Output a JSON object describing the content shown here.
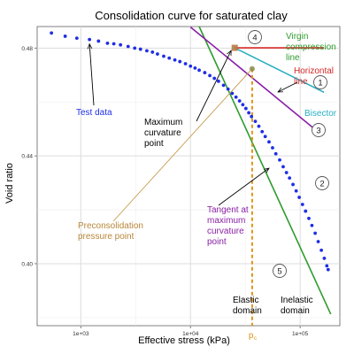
{
  "chart_data": {
    "type": "scatter",
    "title": "Consolidation curve for saturated clay",
    "xlabel": "Effective stress (kPa)",
    "ylabel": "Void ratio",
    "xscale": "log",
    "xlim": [
      400,
      230000
    ],
    "ylim": [
      0.377,
      0.488
    ],
    "xticks": [
      1000,
      10000,
      100000
    ],
    "xtick_labels": [
      "1e+03",
      "1e+04",
      "1e+05"
    ],
    "yticks": [
      0.4,
      0.44,
      0.48
    ],
    "ytick_labels": [
      "0.40",
      "0.44",
      "0.48"
    ],
    "grid": true,
    "colors": {
      "data": "#1f2ee6",
      "virgin": "#2e9c2e",
      "horizontal": "#d62828",
      "bisector": "#2aaec2",
      "tangent": "#8a1fa6",
      "pc": "#e0951a",
      "preconsol_line": "#c89a4a",
      "preconsol_text": "#b8873a",
      "annotation": "#000000"
    },
    "series": [
      {
        "name": "Test data",
        "points": [
          [
            540,
            0.4856
          ],
          [
            720,
            0.4844
          ],
          [
            920,
            0.4837
          ],
          [
            1200,
            0.4832
          ],
          [
            1450,
            0.4826
          ],
          [
            1750,
            0.4818
          ],
          [
            2000,
            0.4816
          ],
          [
            2300,
            0.4812
          ],
          [
            2700,
            0.4806
          ],
          [
            3100,
            0.48
          ],
          [
            3500,
            0.4796
          ],
          [
            4000,
            0.479
          ],
          [
            4500,
            0.4785
          ],
          [
            5000,
            0.4778
          ],
          [
            5700,
            0.477
          ],
          [
            6400,
            0.4763
          ],
          [
            7200,
            0.4756
          ],
          [
            8000,
            0.475
          ],
          [
            9000,
            0.4742
          ],
          [
            10000,
            0.4733
          ],
          [
            11000,
            0.4726
          ],
          [
            12000,
            0.4718
          ],
          [
            13500,
            0.4709
          ],
          [
            15000,
            0.4698
          ],
          [
            16500,
            0.4688
          ],
          [
            18000,
            0.4677
          ],
          [
            20000,
            0.4662
          ],
          [
            22000,
            0.4648
          ],
          [
            24000,
            0.4632
          ],
          [
            26000,
            0.4618
          ],
          [
            28000,
            0.4604
          ],
          [
            30000,
            0.459
          ],
          [
            32000,
            0.4576
          ],
          [
            34000,
            0.456
          ],
          [
            36000,
            0.4546
          ],
          [
            39000,
            0.4528
          ],
          [
            42000,
            0.451
          ],
          [
            45000,
            0.449
          ],
          [
            48000,
            0.4472
          ],
          [
            52000,
            0.4452
          ],
          [
            56000,
            0.443
          ],
          [
            60000,
            0.4408
          ],
          [
            65000,
            0.4385
          ],
          [
            70000,
            0.436
          ],
          [
            75000,
            0.4338
          ],
          [
            80000,
            0.4318
          ],
          [
            86000,
            0.4294
          ],
          [
            92000,
            0.427
          ],
          [
            98000,
            0.4246
          ],
          [
            105000,
            0.422
          ],
          [
            112000,
            0.4195
          ],
          [
            120000,
            0.4168
          ],
          [
            128000,
            0.4142
          ],
          [
            137000,
            0.4113
          ],
          [
            146000,
            0.4082
          ],
          [
            156000,
            0.405
          ],
          [
            166000,
            0.402
          ],
          [
            175000,
            0.3992
          ],
          [
            180000,
            0.3978
          ]
        ]
      },
      {
        "name": "Virgin compression line",
        "points": [
          [
            12000,
            0.488
          ],
          [
            190000,
            0.3813
          ]
        ]
      },
      {
        "name": "Horizontal line",
        "points": [
          [
            25300,
            0.4801
          ],
          [
            165000,
            0.4801
          ]
        ]
      },
      {
        "name": "Bisector",
        "points": [
          [
            25300,
            0.4801
          ],
          [
            165000,
            0.4636
          ]
        ]
      },
      {
        "name": "Tangent at maximum curvature point",
        "points": [
          [
            10000,
            0.4878
          ],
          [
            155000,
            0.448
          ]
        ]
      }
    ],
    "special_points": {
      "max_curvature": [
        25300,
        0.4801
      ],
      "preconsolidation": [
        36500,
        0.4723
      ],
      "pc_line_x": 36500
    },
    "annotations": {
      "test_data": "Test data",
      "max_curvature": [
        "Maximum",
        "curvature",
        "point"
      ],
      "preconsolidation": [
        "Preconsolidation",
        "pressure point"
      ],
      "tangent": [
        "Tangent at",
        "maximum",
        "curvature",
        "point"
      ],
      "virgin": [
        "Virgin",
        "compression",
        "line"
      ],
      "horizontal": [
        "Horizontal",
        "line"
      ],
      "bisector": "Bisector",
      "pc_label": "p",
      "pc_sub": "c",
      "elastic": [
        "Elastic",
        "domain"
      ],
      "inelastic": [
        "Inelastic",
        "domain"
      ],
      "markers": [
        "1",
        "2",
        "3",
        "4",
        "5"
      ]
    }
  }
}
